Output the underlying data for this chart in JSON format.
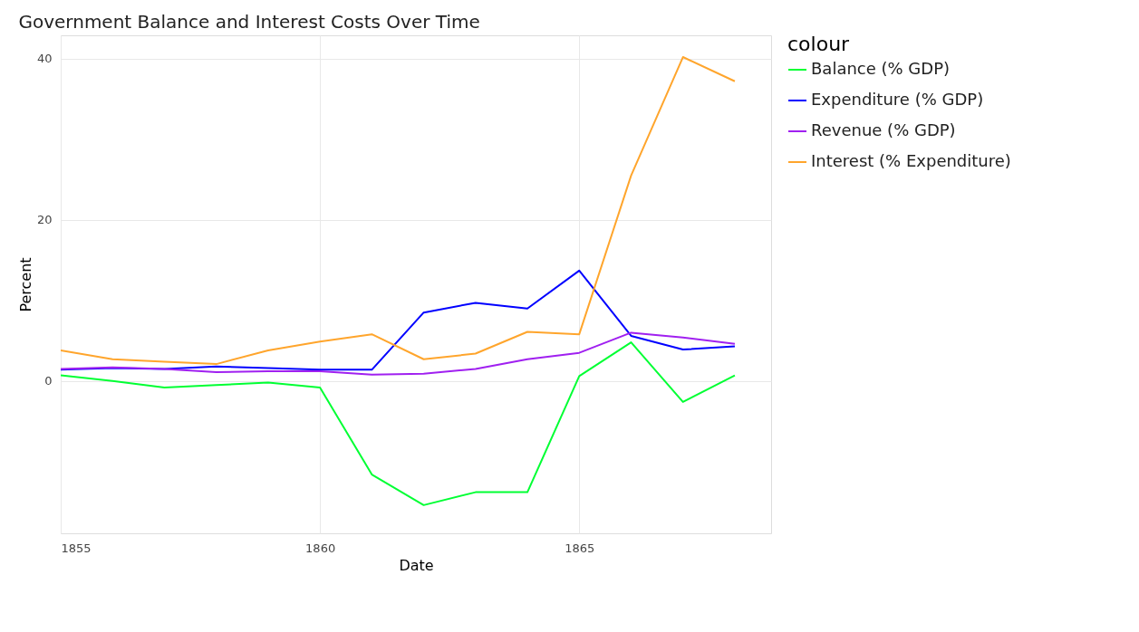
{
  "chart_data": {
    "type": "line",
    "title": "Government Balance and Interest Costs Over Time",
    "xlabel": "Date",
    "ylabel": "Percent",
    "legend_title": "colour",
    "x": [
      1855,
      1856,
      1857,
      1858,
      1859,
      1860,
      1861,
      1862,
      1863,
      1864,
      1865,
      1866,
      1867,
      1868
    ],
    "series": [
      {
        "name": "Balance (% GDP)",
        "color": "#00ff33",
        "values": [
          0.7,
          0.0,
          -0.8,
          -0.5,
          -0.2,
          -0.8,
          -11.6,
          -15.4,
          -13.8,
          -13.8,
          0.6,
          4.8,
          -2.6,
          0.7
        ]
      },
      {
        "name": "Expenditure (% GDP)",
        "color": "#0000ff",
        "values": [
          1.4,
          1.6,
          1.5,
          1.8,
          1.6,
          1.4,
          1.4,
          8.5,
          9.7,
          9.0,
          13.7,
          5.6,
          3.9,
          4.3
        ]
      },
      {
        "name": "Revenue (% GDP)",
        "color": "#a020f0",
        "values": [
          1.5,
          1.7,
          1.5,
          1.1,
          1.2,
          1.2,
          0.8,
          0.9,
          1.5,
          2.7,
          3.5,
          6.0,
          5.4,
          4.6
        ]
      },
      {
        "name": "Interest (% Expenditure)",
        "color": "#ffa52c",
        "values": [
          3.8,
          2.7,
          2.4,
          2.1,
          3.8,
          4.9,
          5.8,
          2.7,
          3.4,
          6.1,
          5.8,
          25.5,
          40.2,
          37.2
        ]
      }
    ],
    "xlim": [
      1855,
      1868.7
    ],
    "xticks": [
      1855,
      1860,
      1865
    ],
    "ylim": [
      -18.9,
      42.9
    ],
    "yticks": [
      0,
      20,
      40
    ],
    "grid": true,
    "legend": "top right",
    "marker": "none",
    "line_style": "solid"
  }
}
